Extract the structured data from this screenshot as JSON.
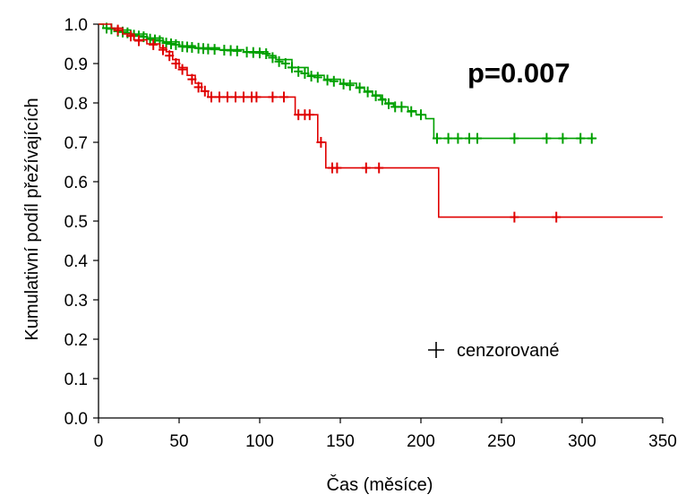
{
  "chart_data": {
    "type": "line",
    "subtype": "kaplan-meier",
    "xlabel": "Čas (měsíce)",
    "ylabel": "Kumulativní podíl přežívajících",
    "xlim": [
      0,
      350
    ],
    "ylim": [
      0,
      1.0
    ],
    "x_ticks": [
      "0",
      "50",
      "100",
      "150",
      "200",
      "250",
      "300",
      "350"
    ],
    "y_ticks": [
      "0.0",
      "0.1",
      "0.2",
      "0.3",
      "0.4",
      "0.5",
      "0.6",
      "0.7",
      "0.8",
      "0.9",
      "1.0"
    ],
    "annotation": "p=0.007",
    "legend": {
      "label": "cenzorované",
      "placement": "bottom-right",
      "symbol": "+"
    },
    "grid": false,
    "series": [
      {
        "color": "#00A000",
        "steps": [
          [
            0,
            1.0
          ],
          [
            3,
            0.99
          ],
          [
            10,
            0.985
          ],
          [
            20,
            0.975
          ],
          [
            30,
            0.965
          ],
          [
            40,
            0.955
          ],
          [
            50,
            0.945
          ],
          [
            60,
            0.94
          ],
          [
            75,
            0.935
          ],
          [
            90,
            0.93
          ],
          [
            105,
            0.92
          ],
          [
            110,
            0.91
          ],
          [
            120,
            0.89
          ],
          [
            130,
            0.87
          ],
          [
            140,
            0.86
          ],
          [
            150,
            0.85
          ],
          [
            160,
            0.84
          ],
          [
            165,
            0.83
          ],
          [
            170,
            0.82
          ],
          [
            175,
            0.81
          ],
          [
            178,
            0.8
          ],
          [
            183,
            0.79
          ],
          [
            192,
            0.78
          ],
          [
            197,
            0.77
          ],
          [
            203,
            0.76
          ],
          [
            208,
            0.71
          ],
          [
            309,
            0.71
          ]
        ],
        "censored": [
          [
            5,
            0.99
          ],
          [
            8,
            0.988
          ],
          [
            12,
            0.982
          ],
          [
            15,
            0.98
          ],
          [
            18,
            0.978
          ],
          [
            22,
            0.972
          ],
          [
            25,
            0.97
          ],
          [
            28,
            0.968
          ],
          [
            32,
            0.962
          ],
          [
            35,
            0.96
          ],
          [
            38,
            0.958
          ],
          [
            42,
            0.952
          ],
          [
            45,
            0.95
          ],
          [
            48,
            0.948
          ],
          [
            52,
            0.943
          ],
          [
            55,
            0.942
          ],
          [
            58,
            0.941
          ],
          [
            62,
            0.939
          ],
          [
            65,
            0.938
          ],
          [
            68,
            0.937
          ],
          [
            72,
            0.936
          ],
          [
            78,
            0.934
          ],
          [
            82,
            0.933
          ],
          [
            86,
            0.932
          ],
          [
            92,
            0.929
          ],
          [
            96,
            0.928
          ],
          [
            100,
            0.927
          ],
          [
            104,
            0.925
          ],
          [
            108,
            0.915
          ],
          [
            112,
            0.905
          ],
          [
            116,
            0.9
          ],
          [
            120,
            0.89
          ],
          [
            124,
            0.88
          ],
          [
            128,
            0.875
          ],
          [
            132,
            0.868
          ],
          [
            136,
            0.865
          ],
          [
            142,
            0.858
          ],
          [
            146,
            0.855
          ],
          [
            152,
            0.848
          ],
          [
            156,
            0.845
          ],
          [
            162,
            0.838
          ],
          [
            167,
            0.828
          ],
          [
            172,
            0.818
          ],
          [
            176,
            0.808
          ],
          [
            180,
            0.798
          ],
          [
            184,
            0.79
          ],
          [
            188,
            0.79
          ],
          [
            194,
            0.778
          ],
          [
            200,
            0.77
          ],
          [
            210,
            0.71
          ],
          [
            217,
            0.71
          ],
          [
            223,
            0.71
          ],
          [
            230,
            0.71
          ],
          [
            235,
            0.71
          ],
          [
            258,
            0.71
          ],
          [
            278,
            0.71
          ],
          [
            288,
            0.71
          ],
          [
            299,
            0.71
          ],
          [
            306,
            0.71
          ]
        ]
      },
      {
        "color": "#E00000",
        "steps": [
          [
            0,
            1.0
          ],
          [
            8,
            0.99
          ],
          [
            15,
            0.975
          ],
          [
            22,
            0.96
          ],
          [
            30,
            0.95
          ],
          [
            38,
            0.94
          ],
          [
            42,
            0.93
          ],
          [
            46,
            0.91
          ],
          [
            50,
            0.89
          ],
          [
            55,
            0.87
          ],
          [
            60,
            0.85
          ],
          [
            64,
            0.83
          ],
          [
            68,
            0.815
          ],
          [
            121,
            0.815
          ],
          [
            122,
            0.77
          ],
          [
            135,
            0.77
          ],
          [
            136,
            0.7
          ],
          [
            140,
            0.7
          ],
          [
            141,
            0.635
          ],
          [
            210,
            0.635
          ],
          [
            211,
            0.51
          ],
          [
            350,
            0.51
          ]
        ],
        "censored": [
          [
            12,
            0.985
          ],
          [
            20,
            0.97
          ],
          [
            25,
            0.958
          ],
          [
            34,
            0.948
          ],
          [
            40,
            0.935
          ],
          [
            44,
            0.92
          ],
          [
            48,
            0.9
          ],
          [
            52,
            0.885
          ],
          [
            58,
            0.86
          ],
          [
            62,
            0.84
          ],
          [
            66,
            0.83
          ],
          [
            70,
            0.815
          ],
          [
            75,
            0.815
          ],
          [
            80,
            0.815
          ],
          [
            85,
            0.815
          ],
          [
            90,
            0.815
          ],
          [
            95,
            0.815
          ],
          [
            98,
            0.815
          ],
          [
            108,
            0.815
          ],
          [
            115,
            0.815
          ],
          [
            124,
            0.77
          ],
          [
            128,
            0.77
          ],
          [
            131,
            0.77
          ],
          [
            138,
            0.7
          ],
          [
            145,
            0.635
          ],
          [
            148,
            0.635
          ],
          [
            166,
            0.635
          ],
          [
            174,
            0.635
          ],
          [
            258,
            0.51
          ],
          [
            284,
            0.51
          ]
        ]
      }
    ]
  }
}
